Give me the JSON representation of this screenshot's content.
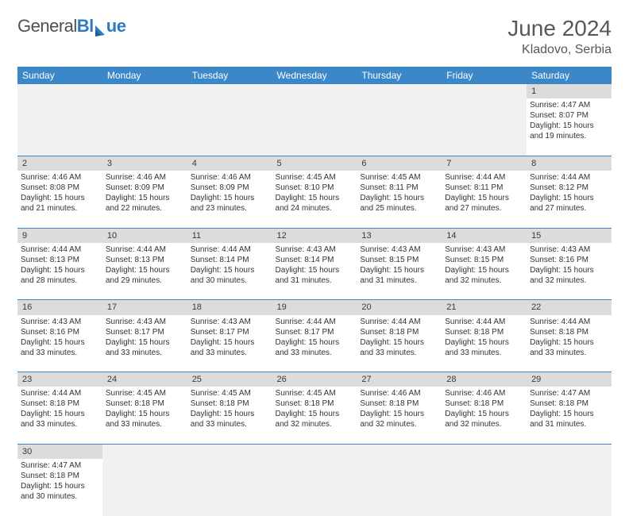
{
  "header": {
    "logo_general": "General",
    "logo_bl": "Bl",
    "logo_ue": "ue",
    "month_title": "June 2024",
    "location": "Kladovo, Serbia"
  },
  "colors": {
    "header_bg": "#3b87c8",
    "header_text": "#ffffff",
    "daynum_bg": "#dcdcdc",
    "empty_bg": "#f1f1f1",
    "rule": "#3b87c8",
    "title_text": "#55585c",
    "logo_gray": "#4a5157",
    "logo_blue": "#2f7bbf"
  },
  "weekdays": [
    "Sunday",
    "Monday",
    "Tuesday",
    "Wednesday",
    "Thursday",
    "Friday",
    "Saturday"
  ],
  "weeks": [
    [
      null,
      null,
      null,
      null,
      null,
      null,
      {
        "n": "1",
        "sr": "Sunrise: 4:47 AM",
        "ss": "Sunset: 8:07 PM",
        "d1": "Daylight: 15 hours",
        "d2": "and 19 minutes."
      }
    ],
    [
      {
        "n": "2",
        "sr": "Sunrise: 4:46 AM",
        "ss": "Sunset: 8:08 PM",
        "d1": "Daylight: 15 hours",
        "d2": "and 21 minutes."
      },
      {
        "n": "3",
        "sr": "Sunrise: 4:46 AM",
        "ss": "Sunset: 8:09 PM",
        "d1": "Daylight: 15 hours",
        "d2": "and 22 minutes."
      },
      {
        "n": "4",
        "sr": "Sunrise: 4:46 AM",
        "ss": "Sunset: 8:09 PM",
        "d1": "Daylight: 15 hours",
        "d2": "and 23 minutes."
      },
      {
        "n": "5",
        "sr": "Sunrise: 4:45 AM",
        "ss": "Sunset: 8:10 PM",
        "d1": "Daylight: 15 hours",
        "d2": "and 24 minutes."
      },
      {
        "n": "6",
        "sr": "Sunrise: 4:45 AM",
        "ss": "Sunset: 8:11 PM",
        "d1": "Daylight: 15 hours",
        "d2": "and 25 minutes."
      },
      {
        "n": "7",
        "sr": "Sunrise: 4:44 AM",
        "ss": "Sunset: 8:11 PM",
        "d1": "Daylight: 15 hours",
        "d2": "and 27 minutes."
      },
      {
        "n": "8",
        "sr": "Sunrise: 4:44 AM",
        "ss": "Sunset: 8:12 PM",
        "d1": "Daylight: 15 hours",
        "d2": "and 27 minutes."
      }
    ],
    [
      {
        "n": "9",
        "sr": "Sunrise: 4:44 AM",
        "ss": "Sunset: 8:13 PM",
        "d1": "Daylight: 15 hours",
        "d2": "and 28 minutes."
      },
      {
        "n": "10",
        "sr": "Sunrise: 4:44 AM",
        "ss": "Sunset: 8:13 PM",
        "d1": "Daylight: 15 hours",
        "d2": "and 29 minutes."
      },
      {
        "n": "11",
        "sr": "Sunrise: 4:44 AM",
        "ss": "Sunset: 8:14 PM",
        "d1": "Daylight: 15 hours",
        "d2": "and 30 minutes."
      },
      {
        "n": "12",
        "sr": "Sunrise: 4:43 AM",
        "ss": "Sunset: 8:14 PM",
        "d1": "Daylight: 15 hours",
        "d2": "and 31 minutes."
      },
      {
        "n": "13",
        "sr": "Sunrise: 4:43 AM",
        "ss": "Sunset: 8:15 PM",
        "d1": "Daylight: 15 hours",
        "d2": "and 31 minutes."
      },
      {
        "n": "14",
        "sr": "Sunrise: 4:43 AM",
        "ss": "Sunset: 8:15 PM",
        "d1": "Daylight: 15 hours",
        "d2": "and 32 minutes."
      },
      {
        "n": "15",
        "sr": "Sunrise: 4:43 AM",
        "ss": "Sunset: 8:16 PM",
        "d1": "Daylight: 15 hours",
        "d2": "and 32 minutes."
      }
    ],
    [
      {
        "n": "16",
        "sr": "Sunrise: 4:43 AM",
        "ss": "Sunset: 8:16 PM",
        "d1": "Daylight: 15 hours",
        "d2": "and 33 minutes."
      },
      {
        "n": "17",
        "sr": "Sunrise: 4:43 AM",
        "ss": "Sunset: 8:17 PM",
        "d1": "Daylight: 15 hours",
        "d2": "and 33 minutes."
      },
      {
        "n": "18",
        "sr": "Sunrise: 4:43 AM",
        "ss": "Sunset: 8:17 PM",
        "d1": "Daylight: 15 hours",
        "d2": "and 33 minutes."
      },
      {
        "n": "19",
        "sr": "Sunrise: 4:44 AM",
        "ss": "Sunset: 8:17 PM",
        "d1": "Daylight: 15 hours",
        "d2": "and 33 minutes."
      },
      {
        "n": "20",
        "sr": "Sunrise: 4:44 AM",
        "ss": "Sunset: 8:18 PM",
        "d1": "Daylight: 15 hours",
        "d2": "and 33 minutes."
      },
      {
        "n": "21",
        "sr": "Sunrise: 4:44 AM",
        "ss": "Sunset: 8:18 PM",
        "d1": "Daylight: 15 hours",
        "d2": "and 33 minutes."
      },
      {
        "n": "22",
        "sr": "Sunrise: 4:44 AM",
        "ss": "Sunset: 8:18 PM",
        "d1": "Daylight: 15 hours",
        "d2": "and 33 minutes."
      }
    ],
    [
      {
        "n": "23",
        "sr": "Sunrise: 4:44 AM",
        "ss": "Sunset: 8:18 PM",
        "d1": "Daylight: 15 hours",
        "d2": "and 33 minutes."
      },
      {
        "n": "24",
        "sr": "Sunrise: 4:45 AM",
        "ss": "Sunset: 8:18 PM",
        "d1": "Daylight: 15 hours",
        "d2": "and 33 minutes."
      },
      {
        "n": "25",
        "sr": "Sunrise: 4:45 AM",
        "ss": "Sunset: 8:18 PM",
        "d1": "Daylight: 15 hours",
        "d2": "and 33 minutes."
      },
      {
        "n": "26",
        "sr": "Sunrise: 4:45 AM",
        "ss": "Sunset: 8:18 PM",
        "d1": "Daylight: 15 hours",
        "d2": "and 32 minutes."
      },
      {
        "n": "27",
        "sr": "Sunrise: 4:46 AM",
        "ss": "Sunset: 8:18 PM",
        "d1": "Daylight: 15 hours",
        "d2": "and 32 minutes."
      },
      {
        "n": "28",
        "sr": "Sunrise: 4:46 AM",
        "ss": "Sunset: 8:18 PM",
        "d1": "Daylight: 15 hours",
        "d2": "and 32 minutes."
      },
      {
        "n": "29",
        "sr": "Sunrise: 4:47 AM",
        "ss": "Sunset: 8:18 PM",
        "d1": "Daylight: 15 hours",
        "d2": "and 31 minutes."
      }
    ],
    [
      {
        "n": "30",
        "sr": "Sunrise: 4:47 AM",
        "ss": "Sunset: 8:18 PM",
        "d1": "Daylight: 15 hours",
        "d2": "and 30 minutes."
      },
      null,
      null,
      null,
      null,
      null,
      null
    ]
  ]
}
